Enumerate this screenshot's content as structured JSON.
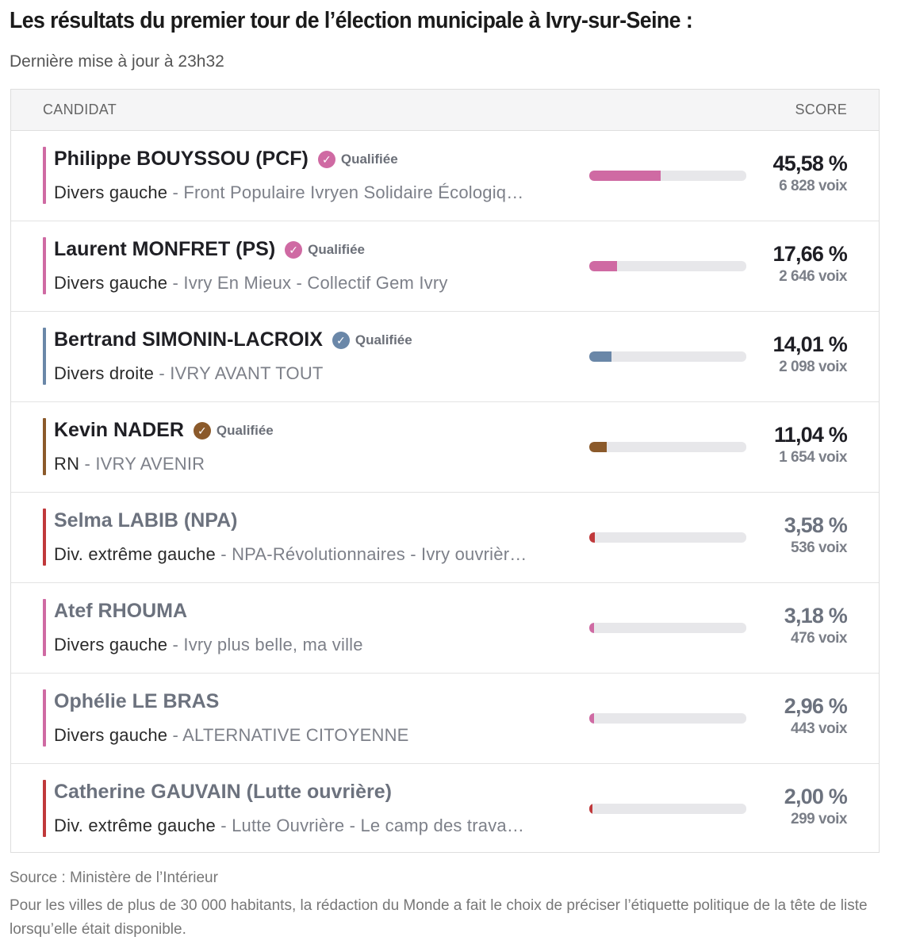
{
  "title": "Les résultats du premier tour de l’élection municipale à Ivry-sur-Seine :",
  "updated": "Dernière mise à jour à 23h32",
  "table": {
    "col_candidate": "CANDIDAT",
    "col_score": "SCORE",
    "qualified_label": "Qualifiée",
    "rows": [
      {
        "name": "Philippe BOUYSSOU (PCF)",
        "qualified": true,
        "family": "Divers gauche",
        "list": " - Front Populaire Ivryen Solidaire Écologiq…",
        "percent": "45,58 %",
        "percent_value": 45.58,
        "votes": "6 828 voix",
        "color": "#cf6aa3"
      },
      {
        "name": "Laurent MONFRET (PS)",
        "qualified": true,
        "family": "Divers gauche",
        "list": " - Ivry En Mieux - Collectif Gem Ivry",
        "percent": "17,66 %",
        "percent_value": 17.66,
        "votes": "2 646 voix",
        "color": "#cf6aa3"
      },
      {
        "name": "Bertrand SIMONIN-LACROIX",
        "qualified": true,
        "family": "Divers droite",
        "list": " - IVRY AVANT TOUT",
        "percent": "14,01 %",
        "percent_value": 14.01,
        "votes": "2 098 voix",
        "color": "#6a87a8"
      },
      {
        "name": "Kevin NADER",
        "qualified": true,
        "family": "RN",
        "list": " - IVRY AVENIR",
        "percent": "11,04 %",
        "percent_value": 11.04,
        "votes": "1 654 voix",
        "color": "#8b5a2b"
      },
      {
        "name": "Selma LABIB (NPA)",
        "qualified": false,
        "family": "Div. extrême gauche",
        "list": " - NPA-Révolutionnaires - Ivry ouvrièr…",
        "percent": "3,58 %",
        "percent_value": 3.58,
        "votes": "536 voix",
        "color": "#c0393b"
      },
      {
        "name": "Atef RHOUMA",
        "qualified": false,
        "family": "Divers gauche",
        "list": " - Ivry plus belle, ma ville",
        "percent": "3,18 %",
        "percent_value": 3.18,
        "votes": "476 voix",
        "color": "#cf6aa3"
      },
      {
        "name": "Ophélie LE BRAS",
        "qualified": false,
        "family": "Divers gauche",
        "list": " - ALTERNATIVE CITOYENNE",
        "percent": "2,96 %",
        "percent_value": 2.96,
        "votes": "443 voix",
        "color": "#cf6aa3"
      },
      {
        "name": "Catherine GAUVAIN (Lutte ouvrière)",
        "qualified": false,
        "family": "Div. extrême gauche",
        "list": " - Lutte Ouvrière - Le camp des trava…",
        "percent": "2,00 %",
        "percent_value": 2.0,
        "votes": "299 voix",
        "color": "#c0393b"
      }
    ]
  },
  "source": "Source : Ministère de l’Intérieur",
  "note": "Pour les villes de plus de 30 000 habitants, la rédaction du Monde a fait le choix de préciser l’étiquette politique de la tête de liste lorsqu’elle était disponible."
}
